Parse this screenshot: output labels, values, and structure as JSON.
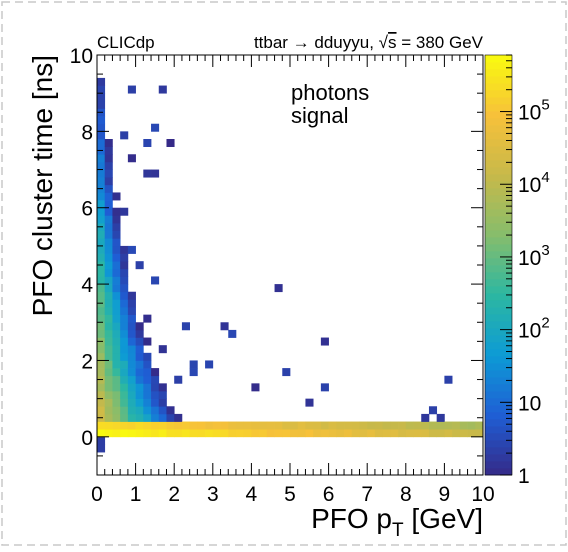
{
  "chart_data": {
    "type": "heatmap",
    "experiment_label": "CLICdp",
    "process_prefix": "ttbar → dduyyu, ",
    "process_sqrt": "s",
    "process_suffix": " = 380 GeV",
    "annotation_lines": [
      "photons",
      "signal"
    ],
    "xlabel_prefix": "PFO p",
    "xlabel_sub": "T",
    "xlabel_suffix": " [GeV]",
    "ylabel": "PFO cluster time [ns]",
    "xlim": [
      0,
      10
    ],
    "ylim": [
      -1,
      10
    ],
    "x_ticks": [
      "0",
      "1",
      "2",
      "3",
      "4",
      "5",
      "6",
      "7",
      "8",
      "9",
      "10"
    ],
    "y_ticks": [
      "0",
      "2",
      "4",
      "6",
      "8",
      "10"
    ],
    "z_scale": "log",
    "zlim": [
      1,
      600000
    ],
    "z_ticks": [
      {
        "base": "1",
        "exp": ""
      },
      {
        "base": "10",
        "exp": ""
      },
      {
        "base": "10",
        "exp": "2"
      },
      {
        "base": "10",
        "exp": "3"
      },
      {
        "base": "10",
        "exp": "4"
      },
      {
        "base": "10",
        "exp": "5"
      }
    ],
    "colormap": [
      "#352a87",
      "#1f5ed5",
      "#0d9bd5",
      "#2cb7a2",
      "#86bd6c",
      "#c7b94a",
      "#f7c13a",
      "#f9fb0e"
    ],
    "grid": false,
    "legend": "colorbar-right",
    "bin_width_x": 0.2,
    "bin_width_y": 0.2
  }
}
